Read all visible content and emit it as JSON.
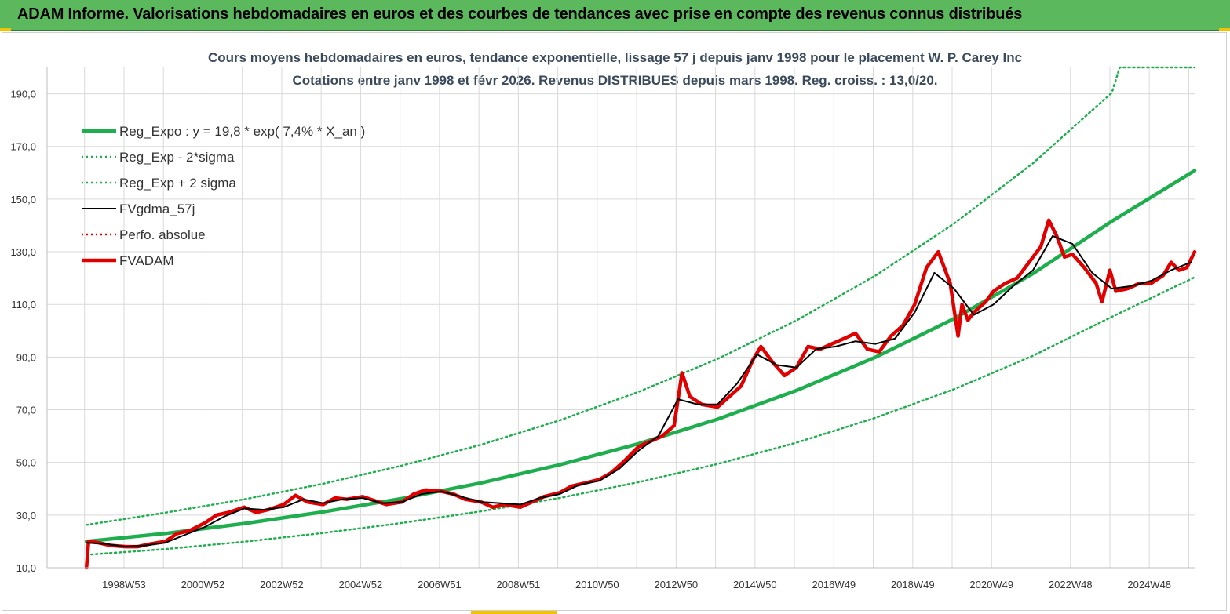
{
  "banner": {
    "title": "ADAM Informe. Valorisations hebdomadaires en euros et des courbes de tendances avec prise en compte des revenus connus distribués"
  },
  "colors": {
    "banner_bg": "#5cb85c",
    "trend": "#1fae4e",
    "price": "#e00000",
    "smoothed": "#000000",
    "grid": "#d9d9d9"
  },
  "chart_data": {
    "type": "line",
    "title": "Cours moyens hebdomadaires en euros, tendance exponentielle, lissage 57 j depuis janv 1998 pour le placement W. P. Carey Inc",
    "subtitle": "Cotations entre janv 1998 et févr 2026. Revenus DISTRIBUES depuis mars 1998. Reg. croiss. : 13,0/20.",
    "xlabel": "",
    "ylabel": "",
    "ylim": [
      10,
      200
    ],
    "xlim": [
      1997.0,
      2026.1
    ],
    "yticks": [
      10,
      30,
      50,
      70,
      90,
      110,
      130,
      150,
      170,
      190
    ],
    "ytick_labels": [
      "10,0",
      "30,0",
      "50,0",
      "70,0",
      "90,0",
      "110,0",
      "130,0",
      "150,0",
      "170,0",
      "190,0"
    ],
    "xticks": [
      1998.95,
      2000.95,
      2002.95,
      2004.95,
      2006.95,
      2008.95,
      2010.95,
      2012.95,
      2014.95,
      2016.95,
      2018.95,
      2020.95,
      2022.95,
      2024.95
    ],
    "xtick_labels": [
      "1998W53",
      "2000W52",
      "2002W52",
      "2004W52",
      "2006W51",
      "2008W51",
      "2010W50",
      "2012W50",
      "2014W50",
      "2016W49",
      "2018W49",
      "2020W49",
      "2022W48",
      "2024W48"
    ],
    "grid": true,
    "legend_position": "top-left",
    "legend": [
      {
        "label": "Reg_Expo : y = 19,8 * exp( 7,4% *  X_an )",
        "style": "solid-thick",
        "color": "#1fae4e"
      },
      {
        "label": "Reg_Exp - 2*sigma",
        "style": "dotted",
        "color": "#1fae4e"
      },
      {
        "label": "Reg_Exp + 2 sigma",
        "style": "dotted",
        "color": "#1fae4e"
      },
      {
        "label": "FVgdma_57j",
        "style": "solid",
        "color": "#000000"
      },
      {
        "label": "Perfo. absolue",
        "style": "dotted",
        "color": "#e00000"
      },
      {
        "label": "FVADAM",
        "style": "solid-thick",
        "color": "#e00000"
      }
    ],
    "series": [
      {
        "name": "Reg_Expo : y = 19,8 * exp( 7,4% *  X_an )",
        "x": [
          1998.0,
          2000.0,
          2002.0,
          2004.0,
          2006.0,
          2008.0,
          2010.0,
          2012.0,
          2014.0,
          2016.0,
          2018.0,
          2020.0,
          2022.0,
          2024.0,
          2026.1
        ],
        "y": [
          20.0,
          23.0,
          26.8,
          31.2,
          36.3,
          42.2,
          49.1,
          57.1,
          66.4,
          77.3,
          89.9,
          104.6,
          121.7,
          141.6,
          160.8
        ]
      },
      {
        "name": "Reg_Exp - 2*sigma",
        "x": [
          1998.0,
          2000.0,
          2002.0,
          2004.0,
          2006.0,
          2008.0,
          2010.0,
          2012.0,
          2014.0,
          2016.0,
          2018.0,
          2020.0,
          2022.0,
          2024.0,
          2026.1
        ],
        "y": [
          14.9,
          17.1,
          19.9,
          23.2,
          27.0,
          31.4,
          36.5,
          42.5,
          49.4,
          57.5,
          66.9,
          77.8,
          90.5,
          105.3,
          120.3
        ]
      },
      {
        "name": "Reg_Exp + 2 sigma",
        "x": [
          1998.0,
          2000.0,
          2002.0,
          2004.0,
          2006.0,
          2008.0,
          2010.0,
          2012.0,
          2014.0,
          2016.0,
          2018.0,
          2020.0,
          2022.0,
          2024.0,
          2024.2,
          2026.1
        ],
        "y": [
          26.3,
          30.9,
          36.0,
          41.9,
          48.8,
          56.7,
          66.0,
          76.8,
          89.3,
          103.9,
          120.9,
          140.7,
          163.6,
          190.4,
          200.0,
          200.0
        ]
      },
      {
        "name": "FVgdma_57j",
        "x": [
          1998.0,
          1998.5,
          1999.0,
          1999.5,
          2000.0,
          2000.5,
          2001.0,
          2001.5,
          2002.0,
          2002.5,
          2003.0,
          2003.5,
          2004.0,
          2004.5,
          2005.0,
          2005.5,
          2006.0,
          2006.5,
          2007.0,
          2007.5,
          2008.0,
          2008.5,
          2009.0,
          2009.5,
          2010.0,
          2010.5,
          2011.0,
          2011.5,
          2012.0,
          2012.5,
          2013.0,
          2013.5,
          2014.0,
          2014.5,
          2015.0,
          2015.5,
          2016.0,
          2016.5,
          2017.0,
          2017.5,
          2018.0,
          2018.5,
          2019.0,
          2019.5,
          2020.0,
          2020.5,
          2021.0,
          2021.5,
          2022.0,
          2022.5,
          2023.0,
          2023.5,
          2024.0,
          2024.5,
          2025.0,
          2025.5,
          2026.0
        ],
        "y": [
          19.5,
          19.0,
          18.0,
          18.5,
          19.5,
          22.5,
          25.5,
          29.5,
          32.5,
          32.0,
          33.0,
          36.0,
          34.5,
          36.0,
          36.5,
          34.5,
          35.0,
          38.0,
          39.0,
          37.0,
          35.0,
          34.5,
          34.0,
          36.5,
          38.0,
          41.5,
          43.0,
          47.5,
          54.5,
          60.0,
          74.0,
          72.0,
          72.0,
          80.0,
          91.0,
          87.0,
          86.0,
          93.0,
          94.0,
          96.0,
          95.0,
          97.0,
          107.0,
          122.0,
          116.0,
          106.0,
          110.0,
          117.0,
          123.0,
          136.0,
          133.0,
          122.0,
          116.0,
          117.0,
          119.0,
          123.0,
          126.0
        ]
      },
      {
        "name": "FVADAM",
        "x": [
          1998.0,
          1998.05,
          1998.3,
          1998.6,
          1999.0,
          1999.3,
          1999.6,
          2000.0,
          2000.3,
          2000.6,
          2001.0,
          2001.3,
          2001.6,
          2002.0,
          2002.3,
          2002.6,
          2003.0,
          2003.3,
          2003.6,
          2004.0,
          2004.3,
          2004.6,
          2005.0,
          2005.3,
          2005.6,
          2006.0,
          2006.3,
          2006.6,
          2007.0,
          2007.3,
          2007.6,
          2008.0,
          2008.3,
          2008.6,
          2009.0,
          2009.3,
          2009.6,
          2010.0,
          2010.3,
          2010.6,
          2011.0,
          2011.3,
          2011.6,
          2012.0,
          2012.3,
          2012.6,
          2012.9,
          2013.1,
          2013.3,
          2013.6,
          2014.0,
          2014.3,
          2014.6,
          2014.9,
          2015.1,
          2015.4,
          2015.7,
          2016.0,
          2016.3,
          2016.6,
          2016.9,
          2017.2,
          2017.5,
          2017.8,
          2018.1,
          2018.4,
          2018.7,
          2019.0,
          2019.3,
          2019.6,
          2019.9,
          2020.1,
          2020.2,
          2020.35,
          2020.5,
          2020.8,
          2021.0,
          2021.3,
          2021.6,
          2021.9,
          2022.2,
          2022.4,
          2022.6,
          2022.8,
          2023.0,
          2023.3,
          2023.6,
          2023.75,
          2023.95,
          2024.1,
          2024.4,
          2024.7,
          2025.0,
          2025.3,
          2025.5,
          2025.7,
          2025.9,
          2026.1
        ],
        "y": [
          10.0,
          20.0,
          19.5,
          18.5,
          18.0,
          18.0,
          19.0,
          20.0,
          23.0,
          24.0,
          27.0,
          30.0,
          31.0,
          33.0,
          31.0,
          32.0,
          34.0,
          37.5,
          35.0,
          34.0,
          36.5,
          36.0,
          37.0,
          35.5,
          34.0,
          35.0,
          38.0,
          39.5,
          39.0,
          38.0,
          36.0,
          35.0,
          33.0,
          34.0,
          33.0,
          35.0,
          37.0,
          38.5,
          41.0,
          42.0,
          43.5,
          46.0,
          50.0,
          56.0,
          58.0,
          60.0,
          64.0,
          84.0,
          75.0,
          72.0,
          71.0,
          75.0,
          79.0,
          89.0,
          94.0,
          88.0,
          83.0,
          86.0,
          94.0,
          93.0,
          95.0,
          97.0,
          99.0,
          93.0,
          92.0,
          98.0,
          102.0,
          110.0,
          124.0,
          130.0,
          118.0,
          98.0,
          110.0,
          104.0,
          107.0,
          111.0,
          115.0,
          118.0,
          120.0,
          126.0,
          132.0,
          142.0,
          136.0,
          128.0,
          129.0,
          124.0,
          118.0,
          111.0,
          123.0,
          115.0,
          116.0,
          118.0,
          118.0,
          121.0,
          126.0,
          123.0,
          124.0,
          130.0
        ]
      }
    ]
  }
}
